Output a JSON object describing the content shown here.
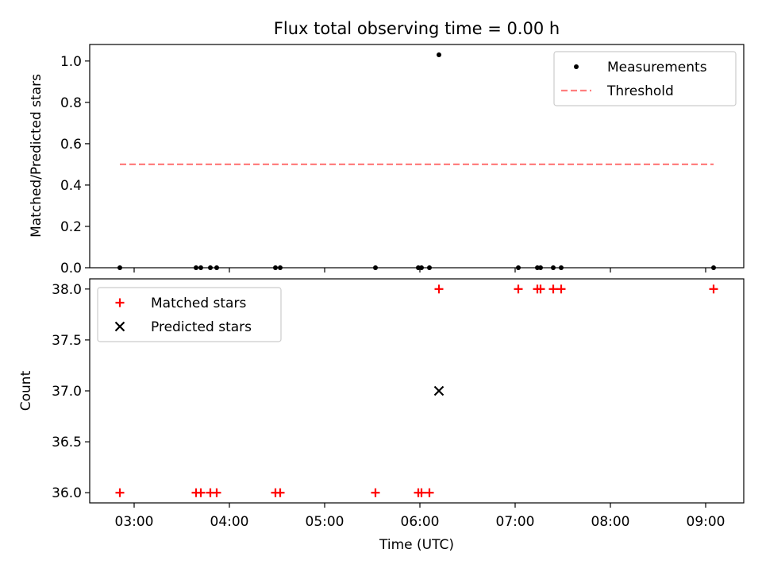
{
  "chart_data": [
    {
      "type": "scatter",
      "title": "Flux total observing time = 0.00 h",
      "xlabel": "",
      "ylabel": "Matched/Predicted stars",
      "ylim": [
        0,
        1.08
      ],
      "yticks": [
        "0.0",
        "0.2",
        "0.4",
        "0.6",
        "0.8",
        "1.0"
      ],
      "ytick_values": [
        0.0,
        0.2,
        0.4,
        0.6,
        0.8,
        1.0
      ],
      "legend_position": "top-right",
      "series": [
        {
          "name": "Measurements",
          "marker": "dot",
          "color": "#000000",
          "x": [
            "02:51",
            "03:39",
            "03:42",
            "03:48",
            "03:52",
            "04:29",
            "04:32",
            "05:32",
            "05:59",
            "06:01",
            "06:06",
            "06:12",
            "07:02",
            "07:14",
            "07:16",
            "07:24",
            "07:29",
            "09:05"
          ],
          "y": [
            0,
            0,
            0,
            0,
            0,
            0,
            0,
            0,
            0,
            0,
            0,
            1.03,
            0,
            0,
            0,
            0,
            0,
            0
          ]
        },
        {
          "name": "Threshold",
          "line": "dashed",
          "color": "#ff7f7f",
          "x": [
            "02:51",
            "09:05"
          ],
          "y": [
            0.5,
            0.5
          ]
        }
      ]
    },
    {
      "type": "scatter",
      "xlabel": "Time (UTC)",
      "ylabel": "Count",
      "ylim": [
        35.9,
        38.1
      ],
      "yticks": [
        "36.0",
        "36.5",
        "37.0",
        "37.5",
        "38.0"
      ],
      "ytick_values": [
        36.0,
        36.5,
        37.0,
        37.5,
        38.0
      ],
      "xlim": [
        "02:32",
        "09:24"
      ],
      "xticks": [
        "03:00",
        "04:00",
        "05:00",
        "06:00",
        "07:00",
        "08:00",
        "09:00"
      ],
      "legend_position": "top-left",
      "series": [
        {
          "name": "Matched stars",
          "marker": "plus",
          "color": "#ff0000",
          "x": [
            "02:51",
            "03:39",
            "03:42",
            "03:48",
            "03:52",
            "04:29",
            "04:32",
            "05:32",
            "05:59",
            "06:01",
            "06:06",
            "06:12",
            "07:02",
            "07:14",
            "07:16",
            "07:24",
            "07:29",
            "09:05"
          ],
          "y": [
            36,
            36,
            36,
            36,
            36,
            36,
            36,
            36,
            36,
            36,
            36,
            38,
            38,
            38,
            38,
            38,
            38,
            38
          ]
        },
        {
          "name": "Predicted stars",
          "marker": "x",
          "color": "#000000",
          "x": [
            "06:12"
          ],
          "y": [
            37
          ]
        }
      ]
    }
  ]
}
